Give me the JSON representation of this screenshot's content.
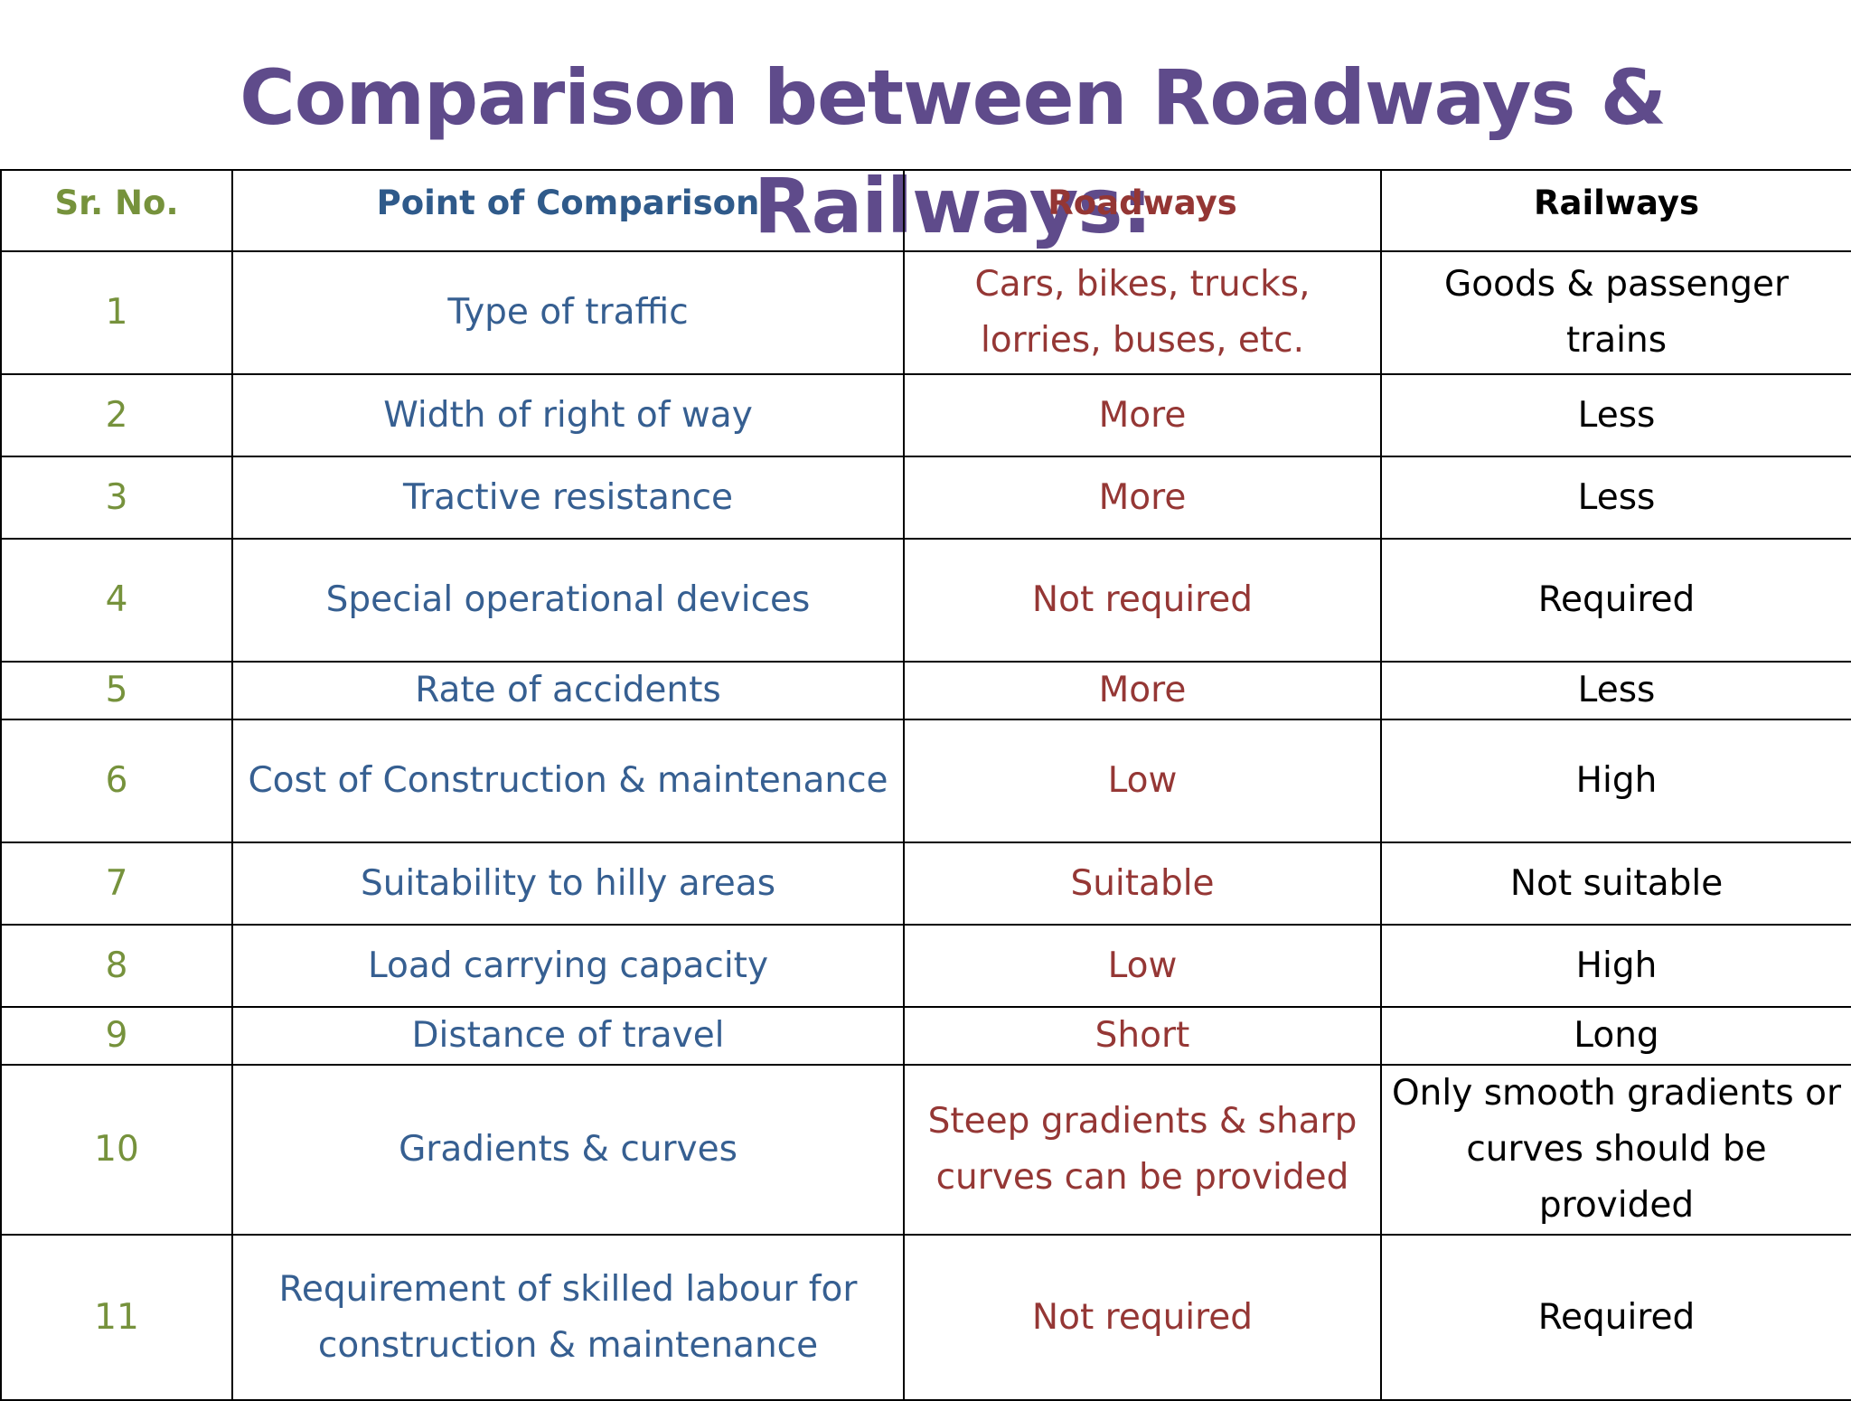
{
  "title": "Comparison between Roadways & Railways:",
  "table": {
    "headers": [
      "Sr. No.",
      "Point of Comparison",
      "Roadways",
      "Railways"
    ],
    "rows": [
      [
        "1",
        "Type of traffic",
        "Cars, bikes, trucks, lorries, buses, etc.",
        "Goods & passenger trains"
      ],
      [
        "2",
        "Width of right of way",
        "More",
        "Less"
      ],
      [
        "3",
        "Tractive resistance",
        "More",
        "Less"
      ],
      [
        "4",
        "Special operational devices",
        "Not required",
        "Required"
      ],
      [
        "5",
        "Rate of accidents",
        "More",
        "Less"
      ],
      [
        "6",
        "Cost of Construction & maintenance",
        "Low",
        "High"
      ],
      [
        "7",
        "Suitability to hilly areas",
        "Suitable",
        "Not suitable"
      ],
      [
        "8",
        "Load carrying capacity",
        "Low",
        "High"
      ],
      [
        "9",
        "Distance of travel",
        "Short",
        "Long"
      ],
      [
        "10",
        "Gradients & curves",
        "Steep gradients & sharp curves can be provided",
        "Only smooth gradients or curves should be provided"
      ],
      [
        "11",
        "Requirement of skilled labour for construction & maintenance",
        "Not required",
        "Required"
      ]
    ]
  },
  "colors": {
    "title": "#5f4b8b",
    "sr_no": "#76923c",
    "point": "#365f91",
    "roadways": "#953735",
    "railways": "#000000"
  }
}
